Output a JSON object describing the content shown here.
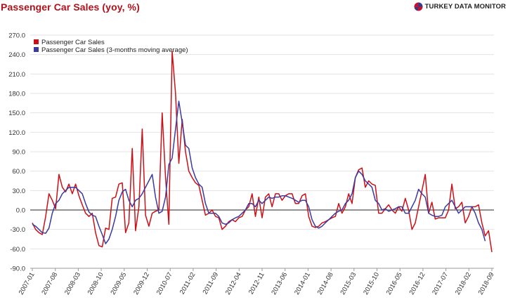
{
  "header": {
    "title": "Passenger Car Sales (yoy, %)",
    "brand": "TURKEY DATA MONITOR"
  },
  "colors": {
    "series1": "#cc1017",
    "series2": "#3a3aa0",
    "zero_line": "#6e6e6e",
    "grid": "#e3e3e3",
    "title": "#b0121b"
  },
  "chart_data": {
    "type": "line",
    "title": "Passenger Car Sales (yoy, %)",
    "xlabel": "",
    "ylabel": "",
    "ylim": [
      -90,
      270
    ],
    "yticks": [
      -90,
      -60,
      -30,
      0,
      30,
      60,
      90,
      120,
      150,
      180,
      210,
      240,
      270
    ],
    "ytick_labels": [
      "-90.0",
      "-60.0",
      "-30.0",
      "0.0",
      "30.0",
      "60.0",
      "90.0",
      "120.0",
      "150.0",
      "180.0",
      "210.0",
      "240.0",
      "270.0"
    ],
    "x_start": "2007-01",
    "x_end": "2018-09",
    "xtick_labels": [
      "2007-01",
      "2007-08",
      "2008-03",
      "2008-10",
      "2009-05",
      "2009-12",
      "2010-07",
      "2011-02",
      "2011-09",
      "2012-04",
      "2012-11",
      "2013-06",
      "2014-01",
      "2014-08",
      "2015-03",
      "2015-10",
      "2016-05",
      "2016-12",
      "2017-07",
      "2018-02",
      "2018-09"
    ],
    "legend_position": "top-left",
    "series": [
      {
        "name": "Passenger Car Sales",
        "values": [
          -20,
          -30,
          -35,
          -38,
          -10,
          25,
          15,
          2,
          55,
          35,
          28,
          40,
          25,
          40,
          22,
          8,
          -5,
          -10,
          -5,
          -35,
          -55,
          -57,
          -28,
          -30,
          18,
          20,
          40,
          42,
          -35,
          -20,
          95,
          -32,
          5,
          125,
          -8,
          -25,
          -5,
          -2,
          0,
          150,
          50,
          -22,
          245,
          180,
          72,
          140,
          90,
          60,
          50,
          42,
          38,
          15,
          -8,
          -5,
          0,
          -10,
          -12,
          -30,
          -25,
          -18,
          -15,
          -18,
          -12,
          -10,
          0,
          5,
          25,
          -10,
          20,
          -12,
          20,
          25,
          5,
          25,
          25,
          15,
          22,
          25,
          25,
          10,
          10,
          22,
          25,
          -10,
          -25,
          -27,
          -25,
          -20,
          -18,
          -15,
          -12,
          -10,
          10,
          -5,
          5,
          25,
          10,
          50,
          62,
          65,
          35,
          45,
          40,
          38,
          -5,
          -5,
          2,
          8,
          0,
          -5,
          5,
          -2,
          18,
          0,
          -30,
          -20,
          5,
          30,
          55,
          -5,
          12,
          -14,
          -12,
          -12,
          -12,
          0,
          40,
          2,
          5,
          12,
          -20,
          -10,
          5,
          5,
          8,
          -20,
          -40,
          -32,
          -65
        ]
      },
      {
        "name": "Passenger Car Sales (3-months moving average)",
        "values": [
          -22,
          -25,
          -30,
          -35,
          -36,
          -28,
          -5,
          10,
          15,
          25,
          30,
          35,
          35,
          35,
          30,
          25,
          10,
          -3,
          -8,
          -10,
          -25,
          -38,
          -52,
          -45,
          -30,
          -10,
          15,
          28,
          32,
          15,
          5,
          15,
          18,
          25,
          35,
          45,
          55,
          20,
          -5,
          -2,
          20,
          70,
          80,
          125,
          168,
          135,
          100,
          95,
          65,
          50,
          40,
          35,
          10,
          -5,
          -5,
          -5,
          -10,
          -20,
          -22,
          -20,
          -15,
          -12,
          -10,
          -5,
          0,
          10,
          10,
          5,
          15,
          10,
          15,
          20,
          18,
          20,
          20,
          22,
          22,
          20,
          18,
          15,
          12,
          15,
          15,
          5,
          -15,
          -25,
          -28,
          -25,
          -20,
          -15,
          -10,
          -5,
          -2,
          0,
          10,
          15,
          25,
          50,
          60,
          55,
          45,
          40,
          35,
          15,
          10,
          0,
          2,
          -2,
          0,
          2,
          5,
          5,
          -5,
          -5,
          5,
          15,
          32,
          25,
          20,
          -5,
          -8,
          -10,
          -10,
          -8,
          5,
          10,
          15,
          5,
          -5,
          0,
          5,
          5,
          5,
          -5,
          -20,
          -30,
          -48
        ]
      }
    ]
  }
}
